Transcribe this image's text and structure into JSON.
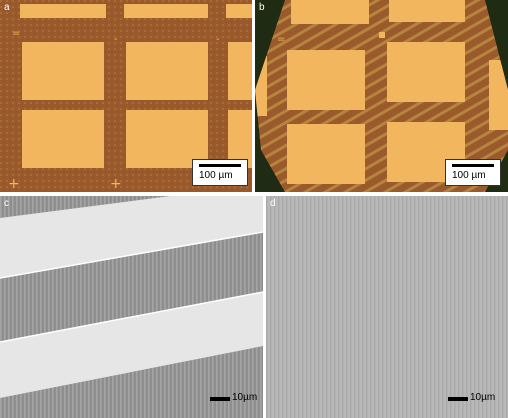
{
  "panels": {
    "a": {
      "letter": "a",
      "scale_label": "100 µm"
    },
    "b": {
      "letter": "b",
      "scale_label": "100 µm"
    },
    "c": {
      "letter": "c",
      "scale_label": "10µm"
    },
    "d": {
      "letter": "d",
      "scale_label": "10µm"
    }
  },
  "colors": {
    "substrate": "#9a5a2c",
    "pad": "#f2b65e",
    "sem_bg": "#8e8e8e",
    "sem_strip": "#e6e6e6",
    "sem_plain": "#b8b8b8"
  }
}
